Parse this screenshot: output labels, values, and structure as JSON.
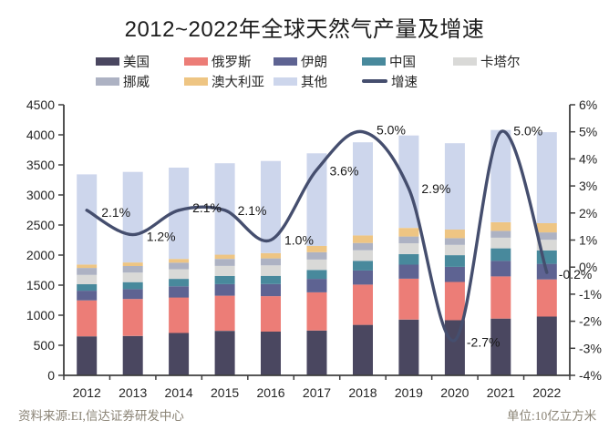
{
  "title": "2012~2022年全球天然气产量及增速",
  "footer": {
    "source": "资料来源:EI,信达证券研发中心",
    "unit": "单位:10亿立方米"
  },
  "chart_data": {
    "type": "stacked-bar+line",
    "title": "2012~2022年全球天然气产量及增速",
    "unit_note": "10亿立方米",
    "grid": false,
    "legend_position": "top",
    "categories": [
      "2012",
      "2013",
      "2014",
      "2015",
      "2016",
      "2017",
      "2018",
      "2019",
      "2020",
      "2021",
      "2022"
    ],
    "series": [
      {
        "key": "usa",
        "name": "美国",
        "color": "#4a4760",
        "values": [
          649,
          655,
          704,
          740,
          727,
          746,
          840,
          928,
          916,
          944,
          978
        ]
      },
      {
        "key": "russia",
        "name": "俄罗斯",
        "color": "#ec7d77",
        "values": [
          598,
          614,
          591,
          584,
          589,
          635,
          669,
          679,
          638,
          702,
          618
        ]
      },
      {
        "key": "iran",
        "name": "伊朗",
        "color": "#5e6392",
        "values": [
          161,
          164,
          186,
          193,
          202,
          224,
          236,
          234,
          251,
          257,
          259
        ]
      },
      {
        "key": "china",
        "name": "中国",
        "color": "#48899c",
        "values": [
          107,
          117,
          124,
          136,
          137,
          148,
          160,
          176,
          194,
          209,
          222
        ]
      },
      {
        "key": "qatar",
        "name": "卡塔尔",
        "color": "#d9d9d7",
        "values": [
          157,
          159,
          160,
          167,
          174,
          172,
          176,
          178,
          171,
          177,
          178
        ]
      },
      {
        "key": "norway",
        "name": "挪威",
        "color": "#adb2c3",
        "values": [
          115,
          109,
          109,
          117,
          116,
          123,
          121,
          114,
          112,
          114,
          123
        ]
      },
      {
        "key": "australia",
        "name": "澳大利亚",
        "color": "#eec583",
        "values": [
          56,
          59,
          62,
          70,
          88,
          106,
          125,
          143,
          143,
          143,
          153
        ]
      },
      {
        "key": "other",
        "name": "其他",
        "color": "#cdd6ec",
        "values": [
          1500,
          1506,
          1518,
          1521,
          1532,
          1539,
          1548,
          1537,
          1436,
          1534,
          1513
        ]
      }
    ],
    "line_series": {
      "key": "growth",
      "name": "增速",
      "color": "#454e6e",
      "values": [
        2.1,
        1.2,
        2.1,
        2.1,
        1.0,
        3.6,
        5.0,
        2.9,
        -2.7,
        5.0,
        -0.2
      ],
      "labels": [
        "2.1%",
        "1.2%",
        "2.1%",
        "2.1%",
        "1.0%",
        "3.6%",
        "5.0%",
        "2.9%",
        "-2.7%",
        "5.0%",
        "-0.2%"
      ]
    },
    "left_axis": {
      "min": 0,
      "max": 4500,
      "step": 500,
      "suffix": ""
    },
    "right_axis": {
      "min": -4,
      "max": 6,
      "step": 1,
      "suffix": "%"
    },
    "legend_rows": [
      [
        "美国",
        "俄罗斯",
        "伊朗",
        "中国",
        "卡塔尔"
      ],
      [
        "挪威",
        "澳大利亚",
        "其他",
        "增速"
      ]
    ],
    "colors": {
      "axis": "#3f3f3f",
      "tick_text": "#262626",
      "data_label": "#1a1a1a"
    }
  }
}
